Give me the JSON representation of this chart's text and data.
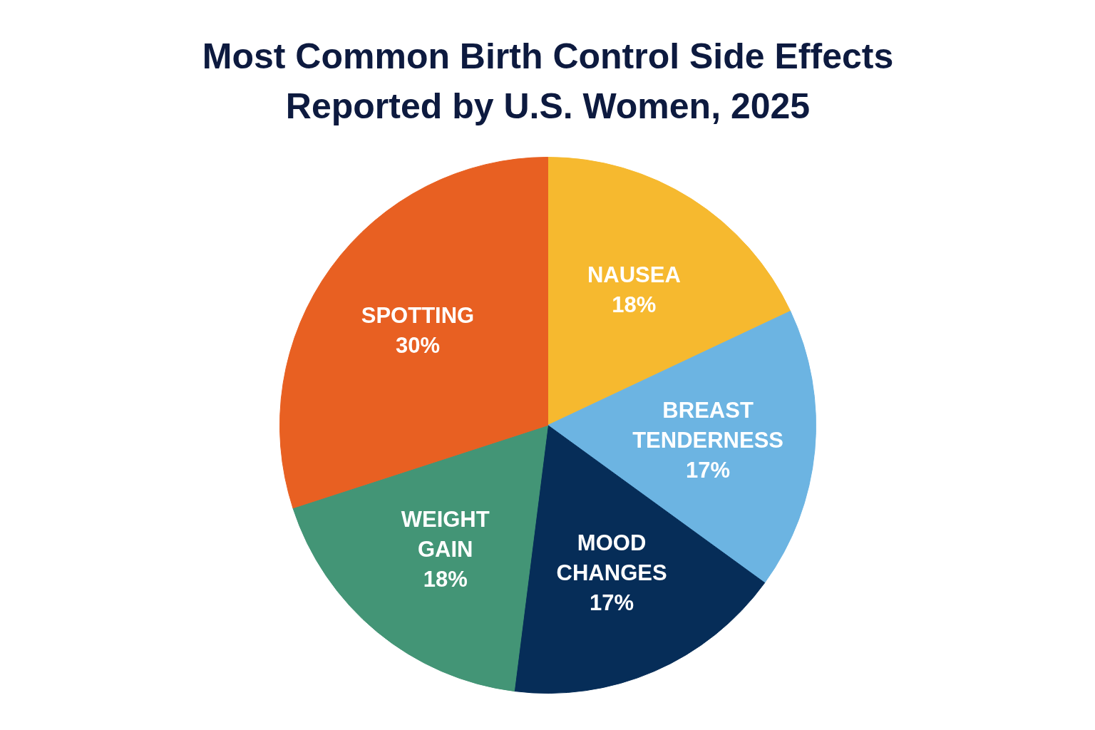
{
  "chart_data": {
    "type": "pie",
    "title": "Most Common Birth Control Side Effects\nReported by U.S. Women, 2025",
    "categories": [
      "NAUSEA",
      "BREAST\nTENDERNESS",
      "MOOD\nCHANGES",
      "WEIGHT\nGAIN",
      "SPOTTING"
    ],
    "values": [
      18,
      17,
      17,
      18,
      30
    ],
    "colors": [
      "#f6b92f",
      "#6cb4e2",
      "#062d58",
      "#439576",
      "#e86022"
    ],
    "value_labels": [
      "18%",
      "17%",
      "17%",
      "18%",
      "30%"
    ]
  }
}
